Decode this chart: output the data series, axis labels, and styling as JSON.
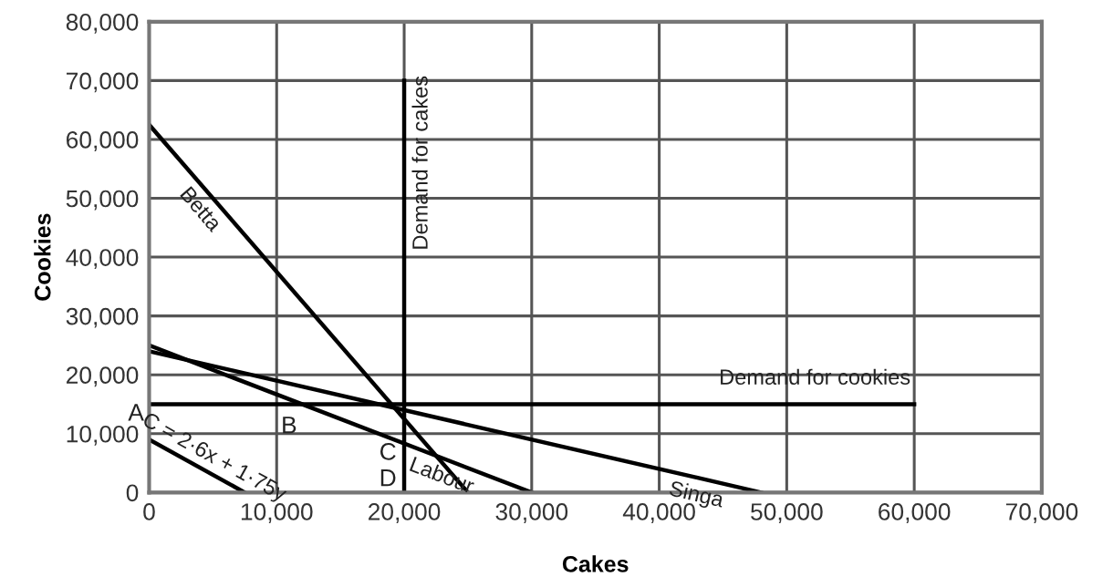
{
  "chart_data": {
    "type": "line",
    "xlabel": "Cakes",
    "ylabel": "Cookies",
    "xlim": [
      0,
      70000
    ],
    "ylim": [
      0,
      80000
    ],
    "xticks": [
      {
        "value": 0,
        "label": "0"
      },
      {
        "value": 10000,
        "label": "10,000"
      },
      {
        "value": 20000,
        "label": "20,000"
      },
      {
        "value": 30000,
        "label": "30,000"
      },
      {
        "value": 40000,
        "label": "40,000"
      },
      {
        "value": 50000,
        "label": "50,000"
      },
      {
        "value": 60000,
        "label": "60,000"
      },
      {
        "value": 70000,
        "label": "70,000"
      }
    ],
    "yticks": [
      {
        "value": 0,
        "label": "0"
      },
      {
        "value": 10000,
        "label": "10,000"
      },
      {
        "value": 20000,
        "label": "20,000"
      },
      {
        "value": 30000,
        "label": "30,000"
      },
      {
        "value": 40000,
        "label": "40,000"
      },
      {
        "value": 50000,
        "label": "50,000"
      },
      {
        "value": 60000,
        "label": "60,000"
      },
      {
        "value": 70000,
        "label": "70,000"
      },
      {
        "value": 80000,
        "label": "80,000"
      }
    ],
    "grid": true,
    "marker": "none",
    "line_style": "solid",
    "series": [
      {
        "name": "Betta",
        "color": "#000000",
        "x": [
          0,
          25000
        ],
        "values": [
          62500,
          0
        ]
      },
      {
        "name": "Demand for cakes",
        "color": "#000000",
        "x": [
          20000,
          20000
        ],
        "values": [
          0,
          70000
        ]
      },
      {
        "name": "Demand for cookies",
        "color": "#000000",
        "x": [
          0,
          60000
        ],
        "values": [
          15000,
          15000
        ]
      },
      {
        "name": "Labour",
        "color": "#000000",
        "x": [
          0,
          30000
        ],
        "values": [
          25000,
          0
        ]
      },
      {
        "name": "Singa",
        "color": "#000000",
        "x": [
          0,
          48000
        ],
        "values": [
          24000,
          0
        ]
      },
      {
        "name": "C = 2·6x + 1·75y",
        "color": "#000000",
        "x": [
          0,
          7500
        ],
        "values": [
          9000,
          0
        ]
      }
    ],
    "annotations": [
      {
        "text": "A",
        "x": 0,
        "y": 15000
      },
      {
        "text": "B",
        "x": 12000,
        "y": 15000
      },
      {
        "text": "C",
        "x": 20000,
        "y": 8333
      },
      {
        "text": "D",
        "x": 20000,
        "y": 0
      }
    ]
  }
}
